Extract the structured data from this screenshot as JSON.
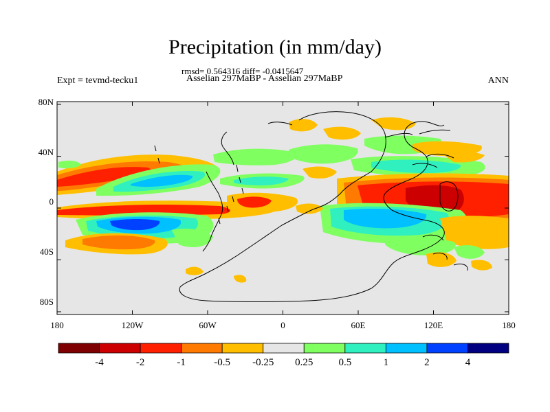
{
  "title": "Precipitation (in mm/day)",
  "stats_text": "rmsd= 0.564316 diff= -0.0415647",
  "left_label": "Expt = tevmd-tecku1",
  "center_label": "Asselian 297MaBP - Asselian 297MaBP",
  "right_label": "ANN",
  "lat_ticks": [
    "80N",
    "40N",
    "0",
    "40S",
    "80S"
  ],
  "lon_ticks": [
    "180",
    "120W",
    "60W",
    "0",
    "60E",
    "120E",
    "180"
  ],
  "colorbar": {
    "colors": [
      "#7f0000",
      "#cc0000",
      "#ff2000",
      "#ff7a00",
      "#ffbf00",
      "#e6e6e6",
      "#80ff60",
      "#30f0c0",
      "#00c0ff",
      "#0040ff",
      "#000080"
    ],
    "labels": [
      "-4",
      "-2",
      "-1",
      "-0.5",
      "-0.25",
      "0.25",
      "0.5",
      "1",
      "2",
      "4"
    ]
  },
  "colors": {
    "background_field": "#e6e6e6",
    "coastline": "#000000"
  }
}
